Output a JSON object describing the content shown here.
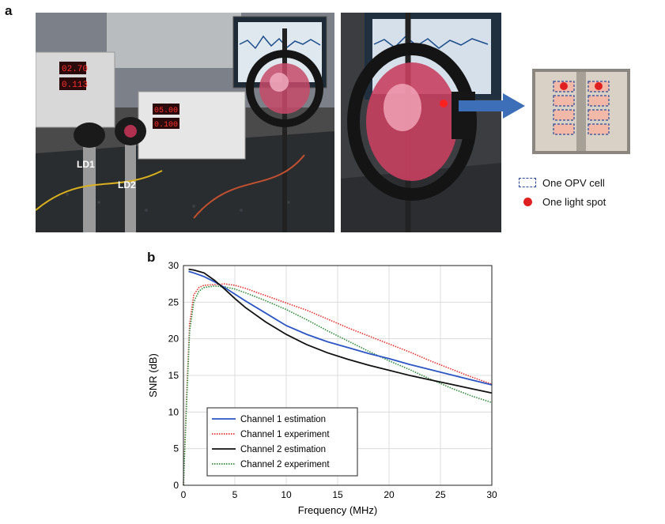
{
  "figure": {
    "panel_a_label": "a",
    "panel_b_label": "b",
    "photo_labels": {
      "ld1": "LD1",
      "ld2": "LD2"
    },
    "readouts": [
      "02.70",
      "0.113",
      "05.00",
      "0.100"
    ],
    "legend": [
      {
        "text": "One OPV cell",
        "icon": "dashed-box-icon"
      },
      {
        "text": "One light spot",
        "icon": "red-dot-icon"
      }
    ],
    "colors": {
      "arrow": "#3d6fb8",
      "opv_box": "#2c4a9a",
      "spot": "#e02020"
    }
  },
  "chart_data": {
    "type": "line",
    "xlabel": "Frequency (MHz)",
    "ylabel": "SNR (dB)",
    "xlim": [
      0,
      30
    ],
    "ylim": [
      0,
      30
    ],
    "xticks": [
      0,
      5,
      10,
      15,
      20,
      25,
      30
    ],
    "yticks": [
      0,
      5,
      10,
      15,
      20,
      25,
      30
    ],
    "grid": true,
    "legend_position": "lower-left",
    "series": [
      {
        "name": "Channel 1 estimation",
        "color": "#2b55c4",
        "style": "solid",
        "x": [
          0.5,
          1,
          2,
          3,
          4,
          5,
          6,
          8,
          10,
          12,
          14,
          16,
          18,
          20,
          22,
          24,
          26,
          28,
          30
        ],
        "y": [
          29.2,
          29.0,
          28.5,
          27.8,
          27.0,
          26.1,
          25.2,
          23.5,
          21.8,
          20.6,
          19.6,
          18.8,
          18.0,
          17.3,
          16.5,
          15.8,
          15.1,
          14.4,
          13.7
        ]
      },
      {
        "name": "Channel 1 experiment",
        "color": "#e53030",
        "style": "dotted",
        "x": [
          0,
          0.3,
          0.6,
          1,
          1.5,
          2,
          3,
          4,
          5,
          6,
          8,
          10,
          12,
          14,
          16,
          18,
          20,
          22,
          24,
          26,
          28,
          30
        ],
        "y": [
          0,
          12,
          22,
          26,
          27,
          27.3,
          27.4,
          27.5,
          27.3,
          26.9,
          25.9,
          24.9,
          23.9,
          22.7,
          21.5,
          20.4,
          19.3,
          18.2,
          17.0,
          15.9,
          14.8,
          13.8
        ]
      },
      {
        "name": "Channel 2 estimation",
        "color": "#111111",
        "style": "solid",
        "x": [
          0.5,
          1,
          2,
          3,
          4,
          5,
          6,
          8,
          10,
          12,
          14,
          16,
          18,
          20,
          22,
          24,
          26,
          28,
          30
        ],
        "y": [
          29.5,
          29.4,
          29.0,
          28.0,
          26.8,
          25.5,
          24.3,
          22.3,
          20.6,
          19.2,
          18.1,
          17.2,
          16.4,
          15.7,
          15.0,
          14.4,
          13.8,
          13.2,
          12.6
        ]
      },
      {
        "name": "Channel 2 experiment",
        "color": "#2f8a3a",
        "style": "dotted",
        "x": [
          0,
          0.3,
          0.6,
          1,
          1.5,
          2,
          3,
          4,
          5,
          6,
          8,
          10,
          12,
          14,
          16,
          18,
          20,
          22,
          24,
          26,
          28,
          30
        ],
        "y": [
          0,
          11,
          21,
          25,
          26.5,
          27,
          27.2,
          27.1,
          26.8,
          26.3,
          25.2,
          24.0,
          22.6,
          21.1,
          19.7,
          18.3,
          17.0,
          15.8,
          14.5,
          13.3,
          12.2,
          11.3
        ]
      }
    ]
  }
}
